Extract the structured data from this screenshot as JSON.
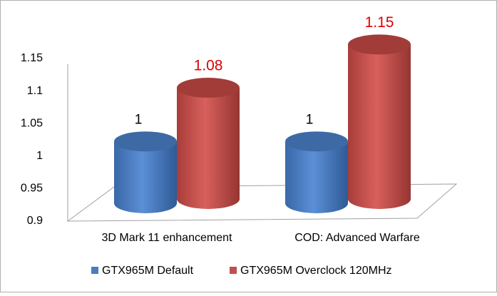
{
  "chart_data": {
    "type": "bar",
    "shape": "cylinder",
    "categories": [
      "3D Mark 11 enhancement",
      "COD: Advanced Warfare"
    ],
    "series": [
      {
        "name": "GTX965M Default",
        "color": "#4a7ebb",
        "label_color": "#000000",
        "values": [
          1,
          1
        ]
      },
      {
        "name": "GTX965M Overclock 120MHz",
        "color": "#c0504d",
        "label_color": "#e00000",
        "values": [
          1.08,
          1.15
        ]
      }
    ],
    "ylim": [
      0.9,
      1.15
    ],
    "yticks": [
      0.9,
      0.95,
      1,
      1.05,
      1.1,
      1.15
    ],
    "legend": "bottom"
  }
}
